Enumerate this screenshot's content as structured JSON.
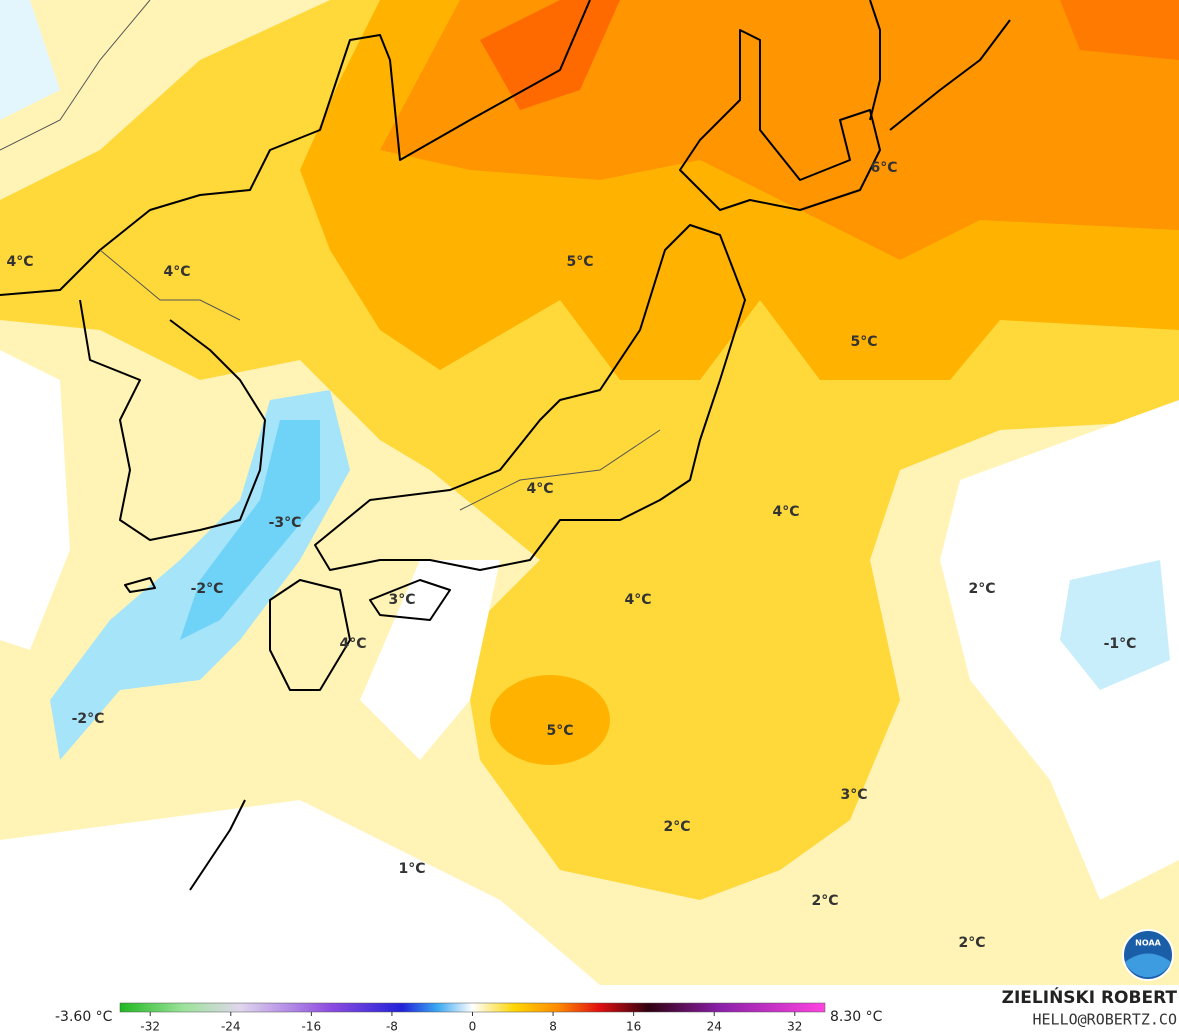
{
  "map": {
    "labels": [
      "4°C",
      "4°C",
      "5°C",
      "6°C",
      "5°C",
      "4°C",
      "4°C",
      "-3°C",
      "-2°C",
      "3°C",
      "4°C",
      "2°C",
      "-1°C",
      "4°C",
      "-2°C",
      "5°C",
      "3°C",
      "2°C",
      "1°C",
      "2°C",
      "2°C"
    ],
    "colorbar": {
      "min_label": "-3.60 °C",
      "max_label": "8.30 °C",
      "xlim": [
        -35,
        35
      ],
      "ticks": [
        -32,
        -24,
        -16,
        -8,
        0,
        8,
        16,
        24,
        32
      ]
    },
    "credit": {
      "author": "ZIELIŃSKI ROBERT",
      "contact": "HELLO@ROBERTZ.CO"
    },
    "logo": "NOAA"
  }
}
